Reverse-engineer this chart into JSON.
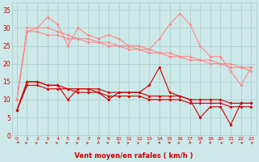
{
  "x": [
    0,
    1,
    2,
    3,
    4,
    5,
    6,
    7,
    8,
    9,
    10,
    11,
    12,
    13,
    14,
    15,
    16,
    17,
    18,
    19,
    20,
    21,
    22,
    23
  ],
  "light_jagged": [
    10,
    29,
    30,
    33,
    31,
    25,
    30,
    28,
    27,
    28,
    27,
    25,
    25,
    24,
    27,
    31,
    34,
    31,
    25,
    22,
    22,
    18,
    14,
    19
  ],
  "light_trend1": [
    10,
    30,
    30,
    30,
    29,
    28,
    27,
    27,
    26,
    26,
    25,
    25,
    24,
    24,
    23,
    23,
    22,
    22,
    21,
    21,
    20,
    20,
    19,
    19
  ],
  "light_trend2": [
    10,
    29,
    29,
    28,
    28,
    27,
    27,
    26,
    26,
    25,
    25,
    24,
    24,
    23,
    23,
    22,
    22,
    21,
    21,
    20,
    20,
    19,
    19,
    18
  ],
  "dark_jagged": [
    7,
    15,
    15,
    14,
    14,
    10,
    13,
    13,
    12,
    10,
    12,
    12,
    12,
    14,
    19,
    12,
    11,
    10,
    5,
    8,
    8,
    3,
    9,
    9
  ],
  "dark_trend1": [
    7,
    15,
    15,
    14,
    14,
    13,
    13,
    13,
    13,
    12,
    12,
    12,
    12,
    11,
    11,
    11,
    11,
    10,
    10,
    10,
    10,
    9,
    9,
    9
  ],
  "dark_trend2": [
    7,
    14,
    14,
    13,
    13,
    13,
    12,
    12,
    12,
    11,
    11,
    11,
    11,
    10,
    10,
    10,
    10,
    9,
    9,
    9,
    9,
    8,
    8,
    8
  ],
  "bg_color": "#cce8e8",
  "grid_color": "#aacccc",
  "dark_red": "#cc0000",
  "light_red": "#ff8888",
  "xlabel": "Vent moyen/en rafales ( km/h )",
  "yticks": [
    0,
    5,
    10,
    15,
    20,
    25,
    30,
    35
  ],
  "xlim": [
    -0.5,
    23.5
  ],
  "ylim": [
    0,
    37
  ],
  "arrow_angles": [
    225,
    45,
    45,
    45,
    45,
    45,
    45,
    45,
    0,
    45,
    0,
    45,
    45,
    45,
    0,
    90,
    45,
    0,
    0,
    0,
    315,
    315,
    315,
    315
  ]
}
